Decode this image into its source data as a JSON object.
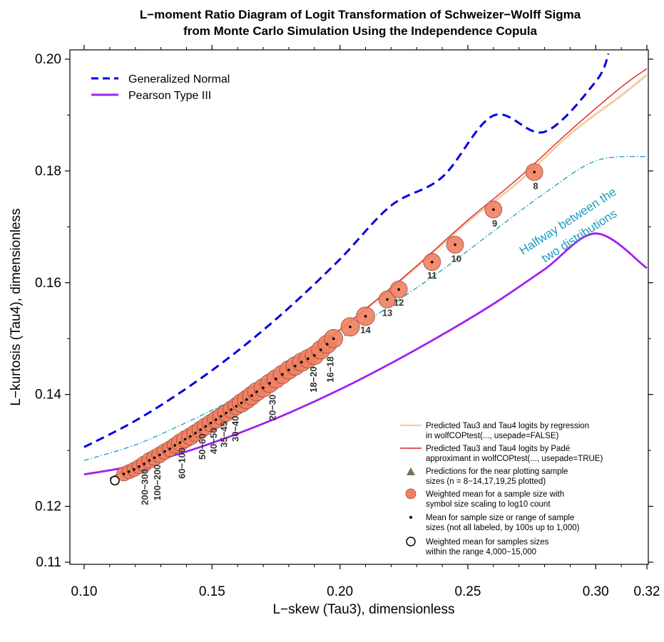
{
  "chart_data": {
    "type": "line",
    "title_line1": "L−moment Ratio Diagram of Logit Transformation of Schweizer−Wolff Sigma",
    "title_line2": "from Monte Carlo Simulation Using the Independence Copula",
    "xlabel": "L−skew (Tau3), dimensionless",
    "ylabel": "L−kurtosis (Tau4), dimensionless",
    "xlim": [
      0.1,
      0.32
    ],
    "ylim": [
      0.11,
      0.2
    ],
    "x_ticks": [
      {
        "value": 0.1,
        "label": "0.10"
      },
      {
        "value": 0.15,
        "label": "0.15"
      },
      {
        "value": 0.2,
        "label": "0.20"
      },
      {
        "value": 0.25,
        "label": "0.25"
      },
      {
        "value": 0.3,
        "label": "0.30"
      },
      {
        "value": 0.32,
        "label": "0.32"
      }
    ],
    "y_ticks": [
      {
        "value": 0.11,
        "label": "0.11"
      },
      {
        "value": 0.12,
        "label": "0.12"
      },
      {
        "value": 0.14,
        "label": "0.14"
      },
      {
        "value": 0.16,
        "label": "0.16"
      },
      {
        "value": 0.18,
        "label": "0.18"
      },
      {
        "value": 0.2,
        "label": "0.20"
      }
    ],
    "series": [
      {
        "name": "Generalized Normal",
        "color": "#0000dd",
        "dash": "dashed",
        "x": [
          0.1,
          0.12,
          0.14,
          0.16,
          0.18,
          0.2,
          0.22,
          0.24,
          0.26,
          0.28,
          0.3,
          0.305
        ],
        "y": [
          0.1306,
          0.1353,
          0.1411,
          0.1478,
          0.1555,
          0.1642,
          0.1738,
          0.1789,
          0.1899,
          0.187,
          0.196,
          0.201
        ]
      },
      {
        "name": "Pearson Type III",
        "color": "#a020f0",
        "dash": "solid",
        "x": [
          0.1,
          0.12,
          0.14,
          0.16,
          0.18,
          0.2,
          0.22,
          0.24,
          0.26,
          0.28,
          0.3,
          0.32
        ],
        "y": [
          0.1257,
          0.1273,
          0.1298,
          0.133,
          0.1367,
          0.1409,
          0.1456,
          0.1507,
          0.1562,
          0.1624,
          0.1688,
          0.1626
        ]
      },
      {
        "name": "Halfway between the two distributions",
        "color": "#1a9cc0",
        "dash": "dashdot",
        "x": [
          0.1,
          0.12,
          0.14,
          0.16,
          0.18,
          0.2,
          0.22,
          0.24,
          0.26,
          0.28,
          0.3,
          0.32
        ],
        "y": [
          0.1282,
          0.131,
          0.135,
          0.1395,
          0.1445,
          0.15,
          0.156,
          0.1623,
          0.1692,
          0.176,
          0.1818,
          0.1826
        ]
      },
      {
        "name": "Predicted Tau3 and Tau4 logits by regression in wolfCOPtest(..., usepade=FALSE)",
        "color": "#f0d0a8",
        "dash": "solid",
        "x": [
          0.11,
          0.13,
          0.15,
          0.17,
          0.19,
          0.21,
          0.23,
          0.25,
          0.27,
          0.29,
          0.31,
          0.32
        ],
        "y": [
          0.125,
          0.1298,
          0.1352,
          0.1415,
          0.148,
          0.1552,
          0.1628,
          0.1709,
          0.1781,
          0.1866,
          0.1935,
          0.1972
        ]
      },
      {
        "name": "Predicted Tau3 and Tau4 logits by Padé approximant in wolfCOPtest(..., usepade=TRUE)",
        "color": "#e02020",
        "dash": "solid",
        "x": [
          0.11,
          0.13,
          0.15,
          0.17,
          0.19,
          0.21,
          0.23,
          0.25,
          0.27,
          0.29,
          0.31,
          0.32
        ],
        "y": [
          0.125,
          0.1298,
          0.1352,
          0.1415,
          0.148,
          0.1553,
          0.163,
          0.1712,
          0.1788,
          0.1872,
          0.195,
          0.1983
        ]
      }
    ],
    "weighted_means": {
      "x": [
        0.1155,
        0.1175,
        0.1195,
        0.1215,
        0.1235,
        0.1255,
        0.1275,
        0.1295,
        0.1315,
        0.1335,
        0.1355,
        0.1375,
        0.1395,
        0.1415,
        0.1435,
        0.1455,
        0.1475,
        0.1495,
        0.1515,
        0.1535,
        0.1555,
        0.1575,
        0.1595,
        0.1615,
        0.1635,
        0.1655,
        0.1675,
        0.17,
        0.1725,
        0.175,
        0.1775,
        0.18,
        0.1825,
        0.185,
        0.1875,
        0.19,
        0.1925,
        0.195,
        0.1975,
        0.204,
        0.21,
        0.2185,
        0.223,
        0.236,
        0.245,
        0.26,
        0.276
      ],
      "y": [
        0.1258,
        0.1262,
        0.1266,
        0.1271,
        0.1276,
        0.1282,
        0.1287,
        0.1292,
        0.1298,
        0.1303,
        0.1309,
        0.1314,
        0.132,
        0.1325,
        0.1331,
        0.1337,
        0.1343,
        0.1349,
        0.1355,
        0.1361,
        0.1367,
        0.1373,
        0.1379,
        0.1385,
        0.1391,
        0.1398,
        0.1405,
        0.1412,
        0.142,
        0.1428,
        0.1436,
        0.1444,
        0.1451,
        0.1458,
        0.1464,
        0.147,
        0.148,
        0.149,
        0.15,
        0.1521,
        0.154,
        0.157,
        0.1588,
        0.1637,
        0.1668,
        0.1731,
        0.1798
      ],
      "size": [
        10,
        10,
        10,
        10,
        11,
        11,
        11,
        11,
        11,
        11,
        11,
        12,
        12,
        12,
        12,
        12,
        12,
        12,
        12,
        12,
        12,
        12,
        12,
        13,
        13,
        13,
        13,
        13,
        13,
        13,
        13,
        13,
        13,
        13,
        13,
        13,
        13,
        13,
        13,
        13,
        13,
        12,
        12,
        12,
        12,
        12,
        12
      ]
    },
    "high_n_weighted_mean": {
      "x": 0.112,
      "y": 0.1246
    },
    "annotations": [
      {
        "text": "8",
        "x": 0.2765,
        "y": 0.1785,
        "angle": 0
      },
      {
        "text": "9",
        "x": 0.2605,
        "y": 0.1718,
        "angle": 0
      },
      {
        "text": "10",
        "x": 0.2455,
        "y": 0.1655,
        "angle": 0
      },
      {
        "text": "11",
        "x": 0.236,
        "y": 0.1625,
        "angle": 0
      },
      {
        "text": "12",
        "x": 0.223,
        "y": 0.1577,
        "angle": 0
      },
      {
        "text": "13",
        "x": 0.2185,
        "y": 0.1558,
        "angle": 0
      },
      {
        "text": "14",
        "x": 0.21,
        "y": 0.1528,
        "angle": 0
      },
      {
        "text": "16−18",
        "x": 0.196,
        "y": 0.1468,
        "angle": -90
      },
      {
        "text": "18−20",
        "x": 0.1895,
        "y": 0.145,
        "angle": -90
      },
      {
        "text": "20−30",
        "x": 0.1735,
        "y": 0.14,
        "angle": -90
      },
      {
        "text": "30−40",
        "x": 0.159,
        "y": 0.1362,
        "angle": -90
      },
      {
        "text": "35−45",
        "x": 0.1545,
        "y": 0.1352,
        "angle": -90
      },
      {
        "text": "40−50",
        "x": 0.1505,
        "y": 0.134,
        "angle": -90
      },
      {
        "text": "50−60",
        "x": 0.146,
        "y": 0.133,
        "angle": -90
      },
      {
        "text": "60−100",
        "x": 0.138,
        "y": 0.1305,
        "angle": -90
      },
      {
        "text": "100−200",
        "x": 0.1285,
        "y": 0.1275,
        "angle": -90
      },
      {
        "text": "200−300",
        "x": 0.1235,
        "y": 0.1267,
        "angle": -90
      }
    ],
    "halfway_label": [
      "Halfway between the",
      "two distributions"
    ],
    "legend_top": {
      "position": "top-left",
      "entries": [
        {
          "label": "Generalized Normal",
          "color": "#0000dd",
          "style": "dashed"
        },
        {
          "label": "Pearson Type III",
          "color": "#a020f0",
          "style": "solid"
        }
      ]
    },
    "legend_bottom": {
      "position": "bottom-right",
      "entries": [
        {
          "lines": [
            "Predicted Tau3 and Tau4 logits by regression",
            "in wolfCOPtest(..., usepade=FALSE)"
          ],
          "symbol": "line",
          "color": "#f0d0a8"
        },
        {
          "lines": [
            "Predicted Tau3 and Tau4 logits by Padé",
            "approximant in wolfCOPtest(..., usepade=TRUE)"
          ],
          "symbol": "line",
          "color": "#e02020"
        },
        {
          "lines": [
            "Predictions for the near plotting sample",
            "sizes (n = 8−14,17,19,25 plotted)"
          ],
          "symbol": "triangle",
          "color": "#7b705a"
        },
        {
          "lines": [
            "Weighted mean for a sample size with",
            "symbol size scaling to log10 count"
          ],
          "symbol": "circle-fill",
          "color": "#f08060"
        },
        {
          "lines": [
            "Mean for sample size or range of sample",
            "sizes (not all labeled, by 100s up to 1,000)"
          ],
          "symbol": "dot",
          "color": "#000000"
        },
        {
          "lines": [
            "Weighted mean for samples sizes",
            "within the range 4,000−15,000"
          ],
          "symbol": "circle-open",
          "color": "#000000"
        }
      ]
    }
  }
}
